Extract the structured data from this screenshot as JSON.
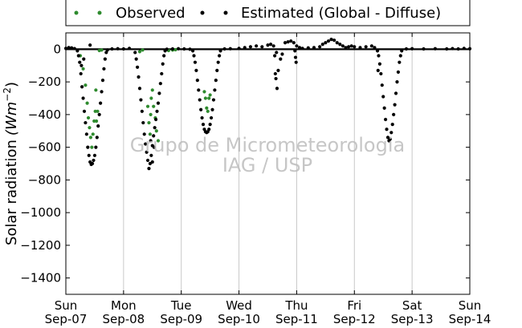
{
  "chart_data": {
    "type": "scatter",
    "title": "",
    "xlabel": "",
    "ylabel": "Solar radiation (Wm^-2)",
    "ylabel_main": "Solar radiation",
    "ylabel_unit_base": "(Wm",
    "ylabel_unit_exp": "−2",
    "ylabel_unit_close": ")",
    "xlim": [
      0,
      7
    ],
    "ylim": [
      -1500,
      100
    ],
    "yticks": [
      0,
      -200,
      -400,
      -600,
      -800,
      -1000,
      -1200,
      -1400
    ],
    "xticks": [
      {
        "x": 0,
        "day": "Sun",
        "date": "Sep-07"
      },
      {
        "x": 1,
        "day": "Mon",
        "date": "Sep-08"
      },
      {
        "x": 2,
        "day": "Tue",
        "date": "Sep-09"
      },
      {
        "x": 3,
        "day": "Wed",
        "date": "Sep-10"
      },
      {
        "x": 4,
        "day": "Thu",
        "date": "Sep-11"
      },
      {
        "x": 5,
        "day": "Fri",
        "date": "Sep-12"
      },
      {
        "x": 6,
        "day": "Sat",
        "date": "Sep-13"
      },
      {
        "x": 7,
        "day": "Sun",
        "date": "Sep-14"
      }
    ],
    "grid": "vertical",
    "legend_position": "top",
    "watermark": [
      "Grupo de Micrometeorologia",
      "IAG / USP"
    ],
    "series": [
      {
        "name": "Observed",
        "color": "#2e8b2e",
        "points": [
          [
            0.25,
            -40
          ],
          [
            0.3,
            -120
          ],
          [
            0.34,
            -220
          ],
          [
            0.37,
            -330
          ],
          [
            0.39,
            -420
          ],
          [
            0.41,
            -480
          ],
          [
            0.43,
            -540
          ],
          [
            0.45,
            -600
          ],
          [
            0.47,
            -520
          ],
          [
            0.49,
            -440
          ],
          [
            0.51,
            -380
          ],
          [
            0.53,
            -440
          ],
          [
            0.55,
            -380
          ],
          [
            0.52,
            -250
          ],
          [
            0.58,
            -8
          ],
          [
            0.62,
            -5
          ],
          [
            1.28,
            -15
          ],
          [
            1.33,
            -5
          ],
          [
            1.42,
            -350
          ],
          [
            1.44,
            -450
          ],
          [
            1.46,
            -520
          ],
          [
            1.47,
            -400
          ],
          [
            1.48,
            -300
          ],
          [
            1.5,
            -250
          ],
          [
            1.52,
            -350
          ],
          [
            1.55,
            -420
          ],
          [
            1.57,
            -500
          ],
          [
            1.6,
            -560
          ],
          [
            1.78,
            -8
          ],
          [
            1.85,
            -5
          ],
          [
            1.9,
            -3
          ],
          [
            2.4,
            -260
          ],
          [
            2.42,
            -300
          ],
          [
            2.44,
            -360
          ],
          [
            2.46,
            -380
          ],
          [
            2.48,
            -300
          ],
          [
            2.5,
            -280
          ]
        ]
      },
      {
        "name": "Estimated (Global - Diffuse)",
        "color": "#000000",
        "points": [
          [
            0.0,
            5
          ],
          [
            0.05,
            10
          ],
          [
            0.1,
            8
          ],
          [
            0.15,
            4
          ],
          [
            0.2,
            -10
          ],
          [
            0.22,
            -40
          ],
          [
            0.24,
            -80
          ],
          [
            0.26,
            -150
          ],
          [
            0.28,
            -230
          ],
          [
            0.3,
            -300
          ],
          [
            0.32,
            -380
          ],
          [
            0.34,
            -450
          ],
          [
            0.36,
            -520
          ],
          [
            0.38,
            -600
          ],
          [
            0.4,
            -650
          ],
          [
            0.42,
            -690
          ],
          [
            0.44,
            -705
          ],
          [
            0.46,
            -700
          ],
          [
            0.48,
            -680
          ],
          [
            0.5,
            -650
          ],
          [
            0.52,
            -600
          ],
          [
            0.54,
            -540
          ],
          [
            0.56,
            -470
          ],
          [
            0.58,
            -400
          ],
          [
            0.6,
            -330
          ],
          [
            0.62,
            -260
          ],
          [
            0.64,
            -190
          ],
          [
            0.66,
            -120
          ],
          [
            0.68,
            -60
          ],
          [
            0.7,
            -20
          ],
          [
            0.72,
            -5
          ],
          [
            0.42,
            25
          ],
          [
            0.31,
            -60
          ],
          [
            0.27,
            -100
          ],
          [
            0.8,
            2
          ],
          [
            0.9,
            3
          ],
          [
            1.0,
            2
          ],
          [
            1.1,
            5
          ],
          [
            1.2,
            -20
          ],
          [
            1.22,
            -60
          ],
          [
            1.24,
            -110
          ],
          [
            1.26,
            -170
          ],
          [
            1.28,
            -240
          ],
          [
            1.3,
            -310
          ],
          [
            1.32,
            -380
          ],
          [
            1.34,
            -450
          ],
          [
            1.36,
            -520
          ],
          [
            1.38,
            -580
          ],
          [
            1.4,
            -630
          ],
          [
            1.42,
            -680
          ],
          [
            1.44,
            -730
          ],
          [
            1.46,
            -700
          ],
          [
            1.48,
            -650
          ],
          [
            1.5,
            -590
          ],
          [
            1.52,
            -530
          ],
          [
            1.54,
            -480
          ],
          [
            1.56,
            -430
          ],
          [
            1.58,
            -380
          ],
          [
            1.6,
            -330
          ],
          [
            1.62,
            -270
          ],
          [
            1.64,
            -210
          ],
          [
            1.66,
            -150
          ],
          [
            1.68,
            -90
          ],
          [
            1.7,
            -40
          ],
          [
            1.72,
            -10
          ],
          [
            1.5,
            -690
          ],
          [
            1.53,
            -600
          ],
          [
            1.47,
            -560
          ],
          [
            1.75,
            0
          ],
          [
            1.85,
            2
          ],
          [
            1.95,
            3
          ],
          [
            2.05,
            2
          ],
          [
            2.15,
            0
          ],
          [
            2.2,
            -10
          ],
          [
            2.22,
            -40
          ],
          [
            2.24,
            -80
          ],
          [
            2.26,
            -130
          ],
          [
            2.28,
            -190
          ],
          [
            2.3,
            -250
          ],
          [
            2.32,
            -310
          ],
          [
            2.34,
            -370
          ],
          [
            2.36,
            -420
          ],
          [
            2.38,
            -460
          ],
          [
            2.4,
            -490
          ],
          [
            2.42,
            -505
          ],
          [
            2.44,
            -510
          ],
          [
            2.46,
            -505
          ],
          [
            2.48,
            -490
          ],
          [
            2.5,
            -460
          ],
          [
            2.52,
            -420
          ],
          [
            2.54,
            -370
          ],
          [
            2.56,
            -310
          ],
          [
            2.58,
            -250
          ],
          [
            2.6,
            -190
          ],
          [
            2.62,
            -130
          ],
          [
            2.64,
            -80
          ],
          [
            2.66,
            -40
          ],
          [
            2.68,
            -10
          ],
          [
            2.75,
            2
          ],
          [
            2.85,
            3
          ],
          [
            3.0,
            5
          ],
          [
            3.1,
            10
          ],
          [
            3.2,
            15
          ],
          [
            3.3,
            20
          ],
          [
            3.4,
            15
          ],
          [
            3.5,
            25
          ],
          [
            3.55,
            30
          ],
          [
            3.6,
            20
          ],
          [
            3.65,
            -20
          ],
          [
            3.62,
            -40
          ],
          [
            3.63,
            -150
          ],
          [
            3.64,
            -180
          ],
          [
            3.66,
            -240
          ],
          [
            3.68,
            -130
          ],
          [
            3.72,
            -60
          ],
          [
            3.75,
            -30
          ],
          [
            3.8,
            40
          ],
          [
            3.85,
            45
          ],
          [
            3.9,
            50
          ],
          [
            3.95,
            40
          ],
          [
            3.97,
            -10
          ],
          [
            3.98,
            -50
          ],
          [
            3.99,
            -80
          ],
          [
            4.0,
            20
          ],
          [
            4.05,
            10
          ],
          [
            4.1,
            5
          ],
          [
            4.2,
            8
          ],
          [
            4.3,
            10
          ],
          [
            4.4,
            15
          ],
          [
            4.45,
            30
          ],
          [
            4.5,
            40
          ],
          [
            4.55,
            50
          ],
          [
            4.6,
            60
          ],
          [
            4.65,
            55
          ],
          [
            4.7,
            40
          ],
          [
            4.75,
            30
          ],
          [
            4.8,
            20
          ],
          [
            4.85,
            10
          ],
          [
            4.9,
            15
          ],
          [
            4.95,
            20
          ],
          [
            5.0,
            15
          ],
          [
            5.1,
            10
          ],
          [
            5.2,
            15
          ],
          [
            5.3,
            20
          ],
          [
            5.35,
            10
          ],
          [
            5.4,
            -10
          ],
          [
            5.42,
            -40
          ],
          [
            5.44,
            -90
          ],
          [
            5.46,
            -150
          ],
          [
            5.48,
            -220
          ],
          [
            5.5,
            -290
          ],
          [
            5.52,
            -360
          ],
          [
            5.54,
            -430
          ],
          [
            5.56,
            -490
          ],
          [
            5.58,
            -540
          ],
          [
            5.6,
            -560
          ],
          [
            5.62,
            -550
          ],
          [
            5.64,
            -510
          ],
          [
            5.66,
            -460
          ],
          [
            5.68,
            -400
          ],
          [
            5.7,
            -340
          ],
          [
            5.72,
            -270
          ],
          [
            5.74,
            -200
          ],
          [
            5.76,
            -140
          ],
          [
            5.78,
            -80
          ],
          [
            5.8,
            -40
          ],
          [
            5.82,
            -10
          ],
          [
            5.41,
            -130
          ],
          [
            5.9,
            2
          ],
          [
            6.0,
            3
          ],
          [
            6.2,
            2
          ],
          [
            6.4,
            3
          ],
          [
            6.6,
            2
          ],
          [
            6.7,
            4
          ],
          [
            6.8,
            2
          ],
          [
            6.9,
            5
          ],
          [
            7.0,
            3
          ]
        ]
      }
    ]
  }
}
